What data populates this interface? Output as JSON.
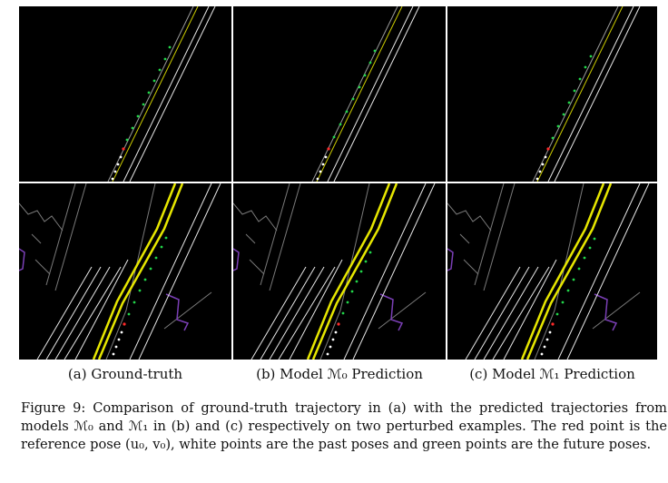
{
  "figure": {
    "subcaptions": [
      "(a) Ground-truth",
      "(b) Model ℳ₀ Prediction",
      "(c) Model ℳ₁ Prediction"
    ],
    "caption": "Figure 9: Comparison of ground-truth trajectory in (a) with the predicted trajectories from models ℳ₀ and ℳ₁ in (b) and (c) respectively on two perturbed examples. The red point is the reference pose (u₀, v₀), white points are the past poses and green points are the future poses."
  },
  "colors": {
    "background": "#000000",
    "lane_white": "#e8e8e8",
    "lane_yellow": "#e6e600",
    "boundary_gray": "#7a7a7a",
    "region_purple": "#7a3fb5",
    "reference_pose": "#ff2a2a",
    "past_poses": "#ffffff",
    "future_poses": "#22d64a"
  },
  "panels": [
    {
      "id": "ground-truth-top"
    },
    {
      "id": "model-m0-top"
    },
    {
      "id": "model-m1-top"
    },
    {
      "id": "ground-truth-bottom"
    },
    {
      "id": "model-m0-bottom"
    },
    {
      "id": "model-m1-bottom"
    }
  ]
}
